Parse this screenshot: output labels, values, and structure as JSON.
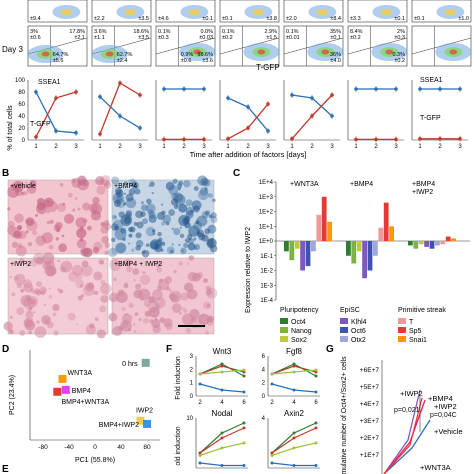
{
  "panelA": {
    "day3_label": "Day 3",
    "top_row_pcts": [
      [
        "±9.4",
        ""
      ],
      [
        "±2.2",
        ""
      ],
      [
        "±4.6",
        ""
      ],
      [
        "±0.1",
        ""
      ],
      [
        "±2.0",
        ""
      ],
      [
        "±3.3",
        ""
      ],
      [
        "±0.1",
        ""
      ]
    ],
    "top_row_right": [
      "",
      "±3.5",
      "±0.1",
      "±3.8",
      "±8.4",
      "±0.1",
      "±1.0"
    ],
    "day3_cells": [
      {
        "tl": "3%",
        "tl2": "±0.6",
        "tr": "17.8%",
        "tr2": "±2.1",
        "bl": "64.7%",
        "bl2": "±5.6",
        "br": ""
      },
      {
        "tl": "3.6%",
        "tl2": "±1.1",
        "tr": "18.6%",
        "tr2": "±3.5",
        "bl": "62.7%",
        "bl2": "±2.4",
        "br": ""
      },
      {
        "tl": "0.1%",
        "tl2": "±0.3",
        "tr": "0.0%",
        "tr2": "±0.03",
        "bl": "0.9%",
        "bl2": "±0.6",
        "br": "98.6%\n±3.6"
      },
      {
        "tl": "0.1%",
        "tl2": "±0.2",
        "tr": "2.9%",
        "tr2": "±1.5",
        "bl": "",
        "bl2": "",
        "br": ""
      },
      {
        "tl": "0.1%",
        "tl2": "±0.01",
        "tr": "35%",
        "tr2": "±0.1",
        "bl": "",
        "bl2": "",
        "br": "36%\n±4.0"
      },
      {
        "tl": "8.4%",
        "tl2": "±0.2",
        "tr": "2%",
        "tr2": "±0.3",
        "bl": "",
        "bl2": "",
        "br": "0.3%\n±0.2"
      },
      {
        "tl": "",
        "tl2": "",
        "tr": "",
        "tr2": "",
        "bl": "",
        "bl2": "",
        "br": ""
      }
    ],
    "xaxis_label": "T-GFP",
    "line_ylabel": "% of total cells",
    "line_xlabel": "Time after addition of factors [days]",
    "ssea1_label": "SSEA1",
    "tgfp_label": "T-GFP",
    "ssea1_right": "SSEA1",
    "tgfp_right": "T-GFP",
    "y_ticks": [
      "100",
      "80",
      "60",
      "40",
      "20",
      "0"
    ],
    "x_ticks": [
      "1",
      "2",
      "3"
    ]
  },
  "chart_data": [
    {
      "type": "line",
      "series": [
        {
          "name": "SSEA1",
          "color": "#2a6fb5",
          "panels": [
            [
              80,
              15,
              12
            ],
            [
              72,
              40,
              20
            ],
            [
              85,
              85,
              85
            ],
            [
              70,
              55,
              15
            ],
            [
              75,
              70,
              40
            ],
            [
              85,
              85,
              85
            ],
            [
              85,
              85,
              85
            ]
          ]
        },
        {
          "name": "T-GFP",
          "color": "#c0392b",
          "panels": [
            [
              5,
              70,
              80
            ],
            [
              10,
              95,
              75
            ],
            [
              1,
              1,
              1
            ],
            [
              2,
              20,
              60
            ],
            [
              2,
              40,
              75
            ],
            [
              1,
              1,
              1
            ],
            [
              2,
              2,
              2
            ]
          ]
        }
      ],
      "x": [
        1,
        2,
        3
      ],
      "ylim": [
        0,
        100
      ]
    },
    {
      "type": "bar",
      "yscale": "log",
      "ylim": [
        "1E-4",
        "1E+4"
      ],
      "groups": [
        "+WNT3A",
        "+BMP4",
        "+BMP4 +IWP2"
      ],
      "genes": [
        "Oct4",
        "Nanog",
        "Sox2",
        "Klhl4",
        "Oct6",
        "Otx2",
        "T",
        "Sp5",
        "Snai1"
      ],
      "colors": [
        "#2e7d32",
        "#7cb342",
        "#c0ca33",
        "#7e57c2",
        "#3f51b5",
        "#9fa8da",
        "#ef9a9a",
        "#e53935",
        "#ff9800"
      ],
      "values": [
        [
          0.2,
          0.05,
          0.3,
          0.01,
          0.02,
          0.2,
          60,
          1000,
          20
        ],
        [
          0.1,
          0.03,
          0.2,
          0.003,
          0.01,
          0.1,
          8,
          400,
          10
        ],
        [
          0.5,
          0.3,
          0.6,
          0.4,
          0.3,
          0.5,
          0.6,
          2,
          1.5
        ]
      ]
    },
    {
      "type": "scatter",
      "title": "",
      "xlabel": "PC1 (55.8%)",
      "ylabel": "PC2 (23.4%)",
      "points": [
        {
          "label": "0 hrs",
          "x": 78,
          "y": 60,
          "color": "#7fa8a0"
        },
        {
          "label": "WNT3A",
          "x": -50,
          "y": 35,
          "color": "#f39c12"
        },
        {
          "label": "BMP4",
          "x": -45,
          "y": 18,
          "color": "#e040fb"
        },
        {
          "label": "BMP4+WNT3A",
          "x": -58,
          "y": 15,
          "color": "#e53935"
        },
        {
          "label": "IWP2",
          "x": 70,
          "y": -30,
          "color": "#f4d03f"
        },
        {
          "label": "BMP4+IWP2",
          "x": 80,
          "y": -35,
          "color": "#3498db"
        }
      ],
      "xticks": [
        "-80",
        "-40",
        "0",
        "40",
        "80"
      ]
    }
  ],
  "panelB": {
    "letter": "B",
    "labels": [
      "+vehicle",
      "+BMP4",
      "+IWP2",
      "+BMP4 + IWP2"
    ]
  },
  "panelC": {
    "letter": "C",
    "ylabel": "Expression relative to IWP2",
    "yticks": [
      "1E+4",
      "1E+3",
      "1E+2",
      "1E+1",
      "1E+0",
      "1E-1",
      "1E-2",
      "1E-3",
      "1E-4"
    ],
    "group_labels": [
      "+WNT3A",
      "+BMP4",
      "+BMP4",
      "+IWP2"
    ],
    "legend_groups": [
      "Pluripotency",
      "EpiSC",
      "Primitive streak"
    ]
  },
  "panelD": {
    "letter": "D"
  },
  "panelE": {
    "letter": "E"
  },
  "panelF": {
    "letter": "F",
    "ylabel": "Fold induction",
    "ylabel2": "old induction",
    "plots": [
      "Wnt3",
      "Fgf8",
      "Nodal",
      "Axin2"
    ],
    "xticks": [
      "2",
      "4",
      "6"
    ],
    "yticks_wnt3": [
      "3",
      "2",
      "1",
      "0"
    ],
    "yticks_fgf8": [
      "6",
      "4",
      "2",
      "0"
    ],
    "yticks_nodal": [
      "10",
      ""
    ],
    "yticks_axin2": [
      "4",
      ""
    ]
  },
  "panelG": {
    "letter": "G",
    "ylabel": "Cumulative number of Oct4+/Sox2+ cells",
    "yticks": [
      "+6E+7",
      "+5E+7",
      "+4E+7",
      "+3E+7",
      "+2E+7",
      "+1E+7"
    ],
    "labels": [
      "+IWP2",
      "+BMP4",
      "+IWP2",
      "+Vehicle",
      "+WNT3A"
    ],
    "pvals": [
      "p=0,021",
      "p=0,04C"
    ]
  }
}
